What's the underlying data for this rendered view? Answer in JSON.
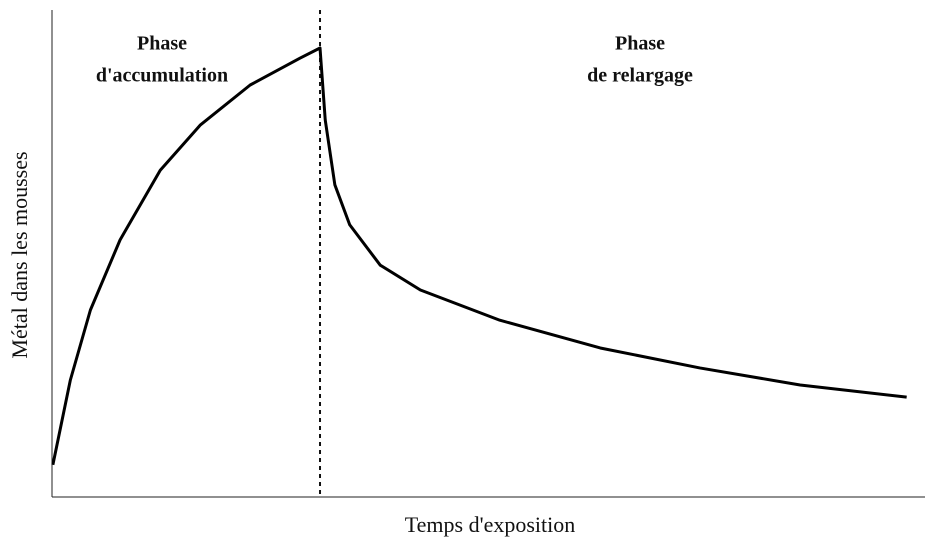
{
  "chart_data": {
    "type": "line",
    "x_label": "Temps d'exposition",
    "y_label": "Métal dans les mousses",
    "annotations": [
      [
        "Phase",
        "d'accumulation"
      ],
      [
        "Phase",
        "de relargage"
      ]
    ],
    "x": [
      0.1,
      2.1,
      4.4,
      7.8,
      12.4,
      17,
      22.7,
      28.4,
      30.7,
      31.3,
      32.4,
      34.1,
      37.6,
      42.2,
      51.3,
      62.8,
      74.2,
      85.7,
      97.9
    ],
    "values": [
      6.6,
      24,
      38.4,
      52.8,
      67.1,
      76.4,
      84.6,
      90.1,
      92.2,
      77.4,
      64.1,
      55.9,
      47.6,
      42.5,
      36.3,
      30.6,
      26.5,
      23,
      20.5
    ],
    "color": "#000000",
    "divider_x": 30.7,
    "xlim": [
      0,
      100
    ],
    "ylim": [
      0,
      100
    ]
  }
}
